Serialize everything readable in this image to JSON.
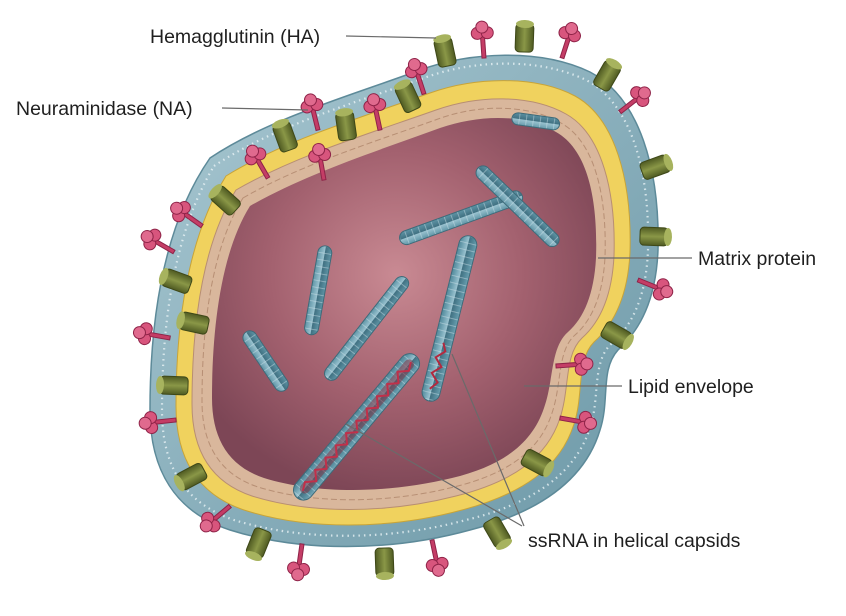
{
  "labels": {
    "hemagglutinin": "Hemagglutinin (HA)",
    "neuraminidase": "Neuraminidase (NA)",
    "matrix_protein": "Matrix protein",
    "lipid_envelope": "Lipid envelope",
    "ssrna": "ssRNA in helical capsids"
  },
  "icons": {
    "virion": "influenza-virion-cutaway",
    "spike_ha": "hemagglutinin-spike",
    "spike_na": "neuraminidase-spike",
    "capsid": "helical-capsid"
  },
  "colors": {
    "outer_shell": "#7fa8b6",
    "lipid_layer": "#f0d25e",
    "matrix": "#d9b79c",
    "interior": "#a3616f",
    "capsid": "#5f95a6",
    "ha_spike": "#6f7b36",
    "na_spike": "#c43d66",
    "rna": "#b2293f",
    "label_text": "#1f1f1f",
    "leader_line": "#6a6a6a"
  }
}
